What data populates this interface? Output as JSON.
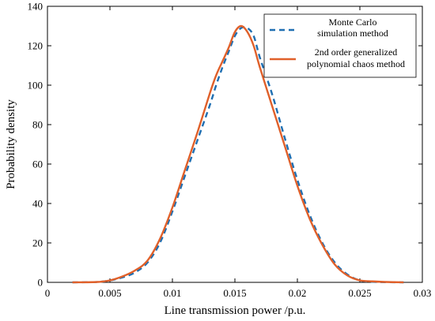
{
  "chart_data": {
    "type": "line",
    "title": "",
    "xlabel": "Line transmission power /p.u.",
    "ylabel": "Probability density",
    "xlim": [
      0,
      0.03
    ],
    "ylim": [
      0,
      140
    ],
    "xticks": [
      0,
      0.005,
      0.01,
      0.015,
      0.02,
      0.025,
      0.03
    ],
    "xtick_labels": [
      "0",
      "0.005",
      "0.01",
      "0.015",
      "0.02",
      "0.025",
      "0.03"
    ],
    "yticks": [
      0,
      20,
      40,
      60,
      80,
      100,
      120,
      140
    ],
    "ytick_labels": [
      "0",
      "20",
      "40",
      "60",
      "80",
      "100",
      "120",
      "140"
    ],
    "grid": false,
    "legend_position": "top-right",
    "series": [
      {
        "name": "Monte Carlo simulation method",
        "legend_lines": [
          "Monte Carlo",
          "simulation method"
        ],
        "color": "#1f6fb2",
        "style": "dashed",
        "x": [
          0.002,
          0.004,
          0.005,
          0.006,
          0.007,
          0.008,
          0.009,
          0.01,
          0.011,
          0.012,
          0.013,
          0.0135,
          0.014,
          0.0145,
          0.015,
          0.0155,
          0.016,
          0.0165,
          0.017,
          0.018,
          0.019,
          0.02,
          0.021,
          0.022,
          0.023,
          0.024,
          0.025,
          0.026,
          0.027,
          0.0285
        ],
        "y": [
          0,
          0.2,
          1,
          2.5,
          5,
          10,
          20,
          36,
          54,
          72,
          90,
          100,
          109,
          117,
          125,
          129,
          129,
          125,
          114,
          95,
          73,
          52,
          34,
          20,
          10,
          4,
          1,
          0.3,
          0.1,
          0
        ]
      },
      {
        "name": "2nd order generalized polynomial chaos method",
        "legend_lines": [
          "2nd order generalized",
          "polynomial chaos method"
        ],
        "color": "#e0602a",
        "style": "solid",
        "x": [
          0.002,
          0.004,
          0.005,
          0.006,
          0.007,
          0.008,
          0.009,
          0.01,
          0.011,
          0.012,
          0.013,
          0.0135,
          0.014,
          0.0145,
          0.015,
          0.0155,
          0.016,
          0.0165,
          0.017,
          0.018,
          0.019,
          0.02,
          0.021,
          0.022,
          0.023,
          0.024,
          0.025,
          0.026,
          0.027,
          0.0285
        ],
        "y": [
          0,
          0.2,
          1,
          3,
          6,
          11,
          22,
          38,
          57,
          76,
          96,
          105,
          112,
          119,
          127,
          130,
          127,
          120,
          109,
          89,
          69,
          49,
          32,
          19,
          9,
          3.5,
          1,
          0.5,
          0.2,
          0
        ]
      }
    ]
  }
}
